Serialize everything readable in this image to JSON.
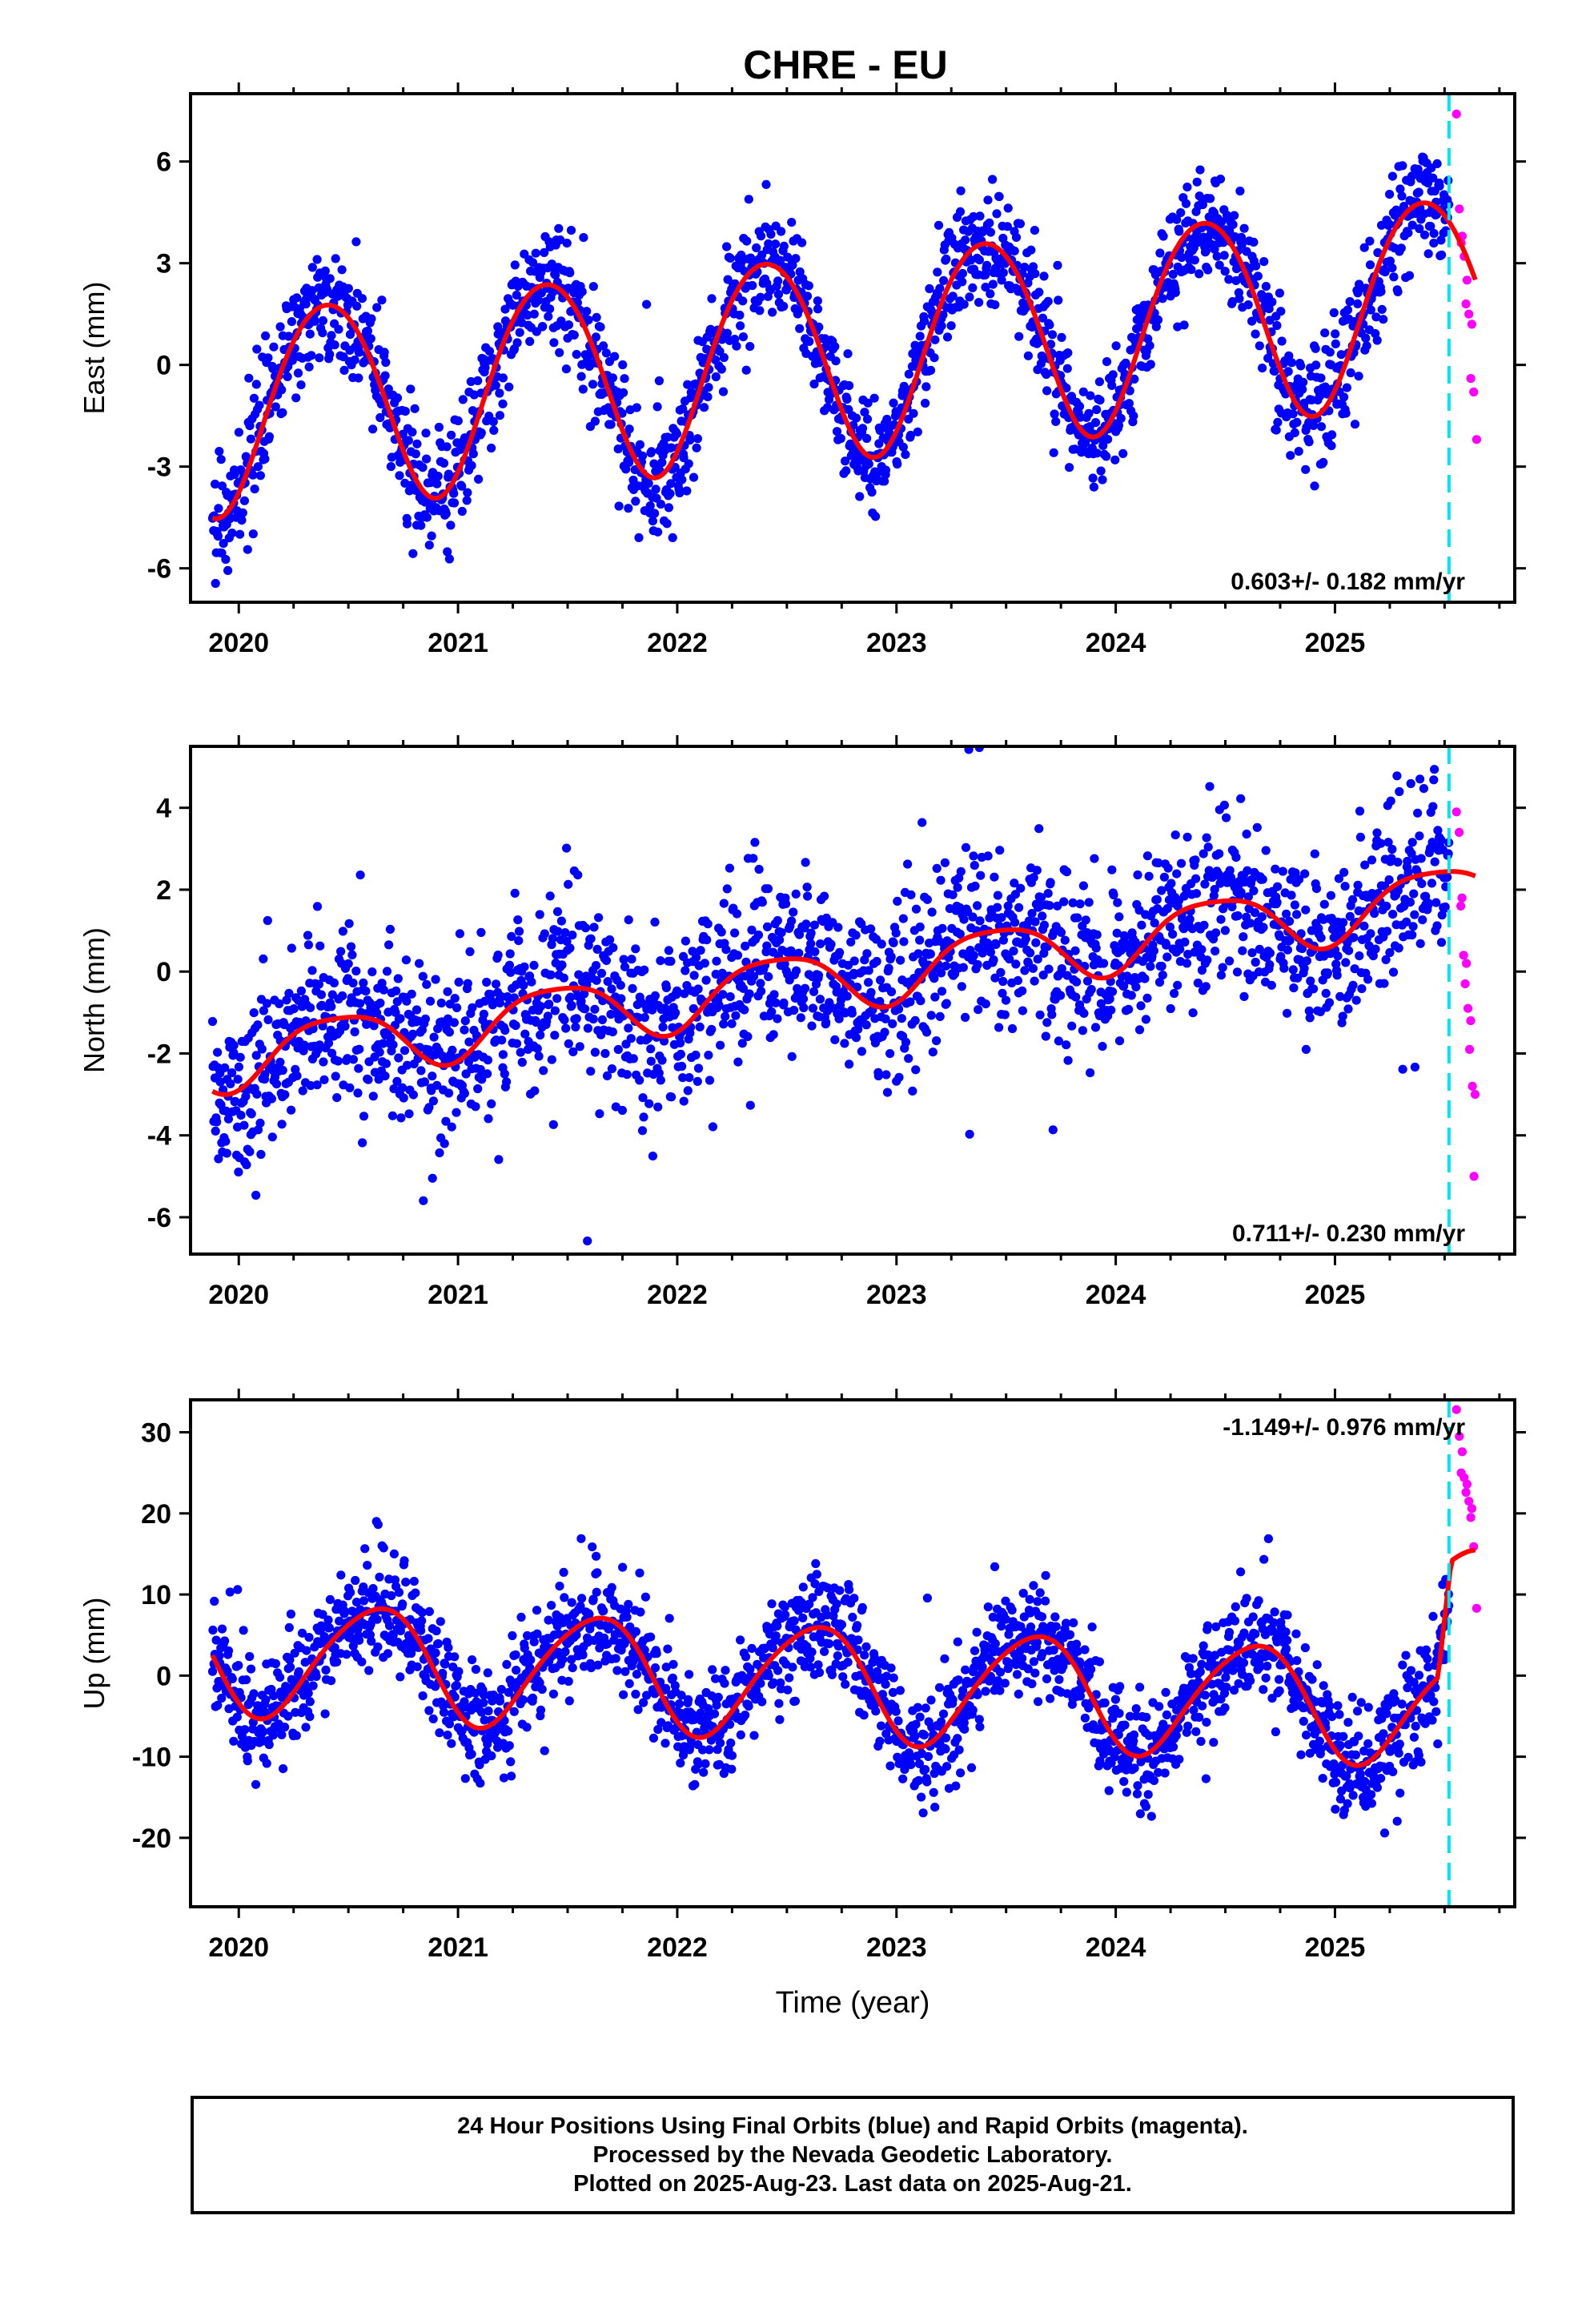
{
  "page": {
    "title": "CHRE - EU"
  },
  "chart_data": [
    {
      "type": "scatter",
      "name": "east",
      "ylabel": "East (mm)",
      "xlabel": "",
      "xlim": [
        2019.78,
        2025.82
      ],
      "ylim": [
        -7.0,
        8.0
      ],
      "xticks": [
        2020,
        2021,
        2022,
        2023,
        2024,
        2025
      ],
      "yticks": [
        -6,
        -3,
        0,
        3,
        6
      ],
      "rate_label": "0.603+/- 0.182 mm/yr",
      "rate_position": "bottom-right",
      "rapid_start": 2025.52,
      "model": {
        "offset": -1.35,
        "trend": 0.603,
        "annual_amp": 3.0,
        "annual_peak": 0.4,
        "semiannual_amp": 0.2,
        "semiannual_peak": 0.15,
        "noise": 0.85
      },
      "series": [
        {
          "name": "Final Orbits",
          "color": "#0000ff",
          "x_range": [
            2019.88,
            2025.52
          ],
          "n": 2000
        },
        {
          "name": "Rapid Orbits",
          "color": "#ff00ff",
          "x_range": [
            2025.56,
            2025.64
          ],
          "values": [
            7.4,
            4.6,
            3.8,
            3.6,
            3.2,
            2.5,
            1.8,
            1.5,
            1.2,
            -0.4,
            -0.8,
            -2.2
          ]
        }
      ],
      "fit_color": "#ff0000",
      "rapid_line_color": "#00e5ee"
    },
    {
      "type": "scatter",
      "name": "north",
      "ylabel": "North (mm)",
      "xlabel": "",
      "xlim": [
        2019.78,
        2025.82
      ],
      "ylim": [
        -6.9,
        5.5
      ],
      "xticks": [
        2020,
        2021,
        2022,
        2023,
        2024,
        2025
      ],
      "yticks": [
        -6,
        -4,
        -2,
        0,
        2,
        4
      ],
      "rate_label": "0.711+/- 0.230 mm/yr",
      "rate_position": "bottom-right",
      "rapid_start": 2025.52,
      "model": {
        "offset": -2.15,
        "trend": 0.711,
        "annual_amp": 0.75,
        "annual_peak": 0.45,
        "semiannual_amp": 0.15,
        "semiannual_peak": 0.2,
        "noise": 1.05
      },
      "series": [
        {
          "name": "Final Orbits",
          "color": "#0000ff",
          "x_range": [
            2019.88,
            2025.52
          ],
          "n": 2000
        },
        {
          "name": "Rapid Orbits",
          "color": "#ff00ff",
          "x_range": [
            2025.56,
            2025.64
          ],
          "values": [
            3.9,
            3.4,
            1.8,
            1.6,
            0.4,
            0.2,
            -0.3,
            -0.9,
            -1.2,
            -1.9,
            -2.8,
            -3.0,
            -5.0
          ]
        }
      ],
      "fit_color": "#ff0000",
      "rapid_line_color": "#00e5ee"
    },
    {
      "type": "scatter",
      "name": "up",
      "ylabel": "Up (mm)",
      "xlabel": "Time (year)",
      "xlim": [
        2019.78,
        2025.82
      ],
      "ylim": [
        -28.5,
        34.0
      ],
      "xticks": [
        2020,
        2021,
        2022,
        2023,
        2024,
        2025
      ],
      "yticks": [
        -20,
        -10,
        0,
        10,
        20,
        30
      ],
      "rate_label": "-1.149+/- 0.976 mm/yr",
      "rate_position": "top-right",
      "rapid_start": 2025.52,
      "model": {
        "offset": 2.5,
        "trend": -1.149,
        "annual_amp": 7.0,
        "annual_peak": 0.62,
        "semiannual_amp": 0.8,
        "semiannual_peak": 0.3,
        "noise": 3.4,
        "end_jump": 13.0,
        "end_jump_start": 2025.47
      },
      "series": [
        {
          "name": "Final Orbits",
          "color": "#0000ff",
          "x_range": [
            2019.88,
            2025.52
          ],
          "n": 2000
        },
        {
          "name": "Rapid Orbits",
          "color": "#ff00ff",
          "x_range": [
            2025.56,
            2025.64
          ],
          "values": [
            32.8,
            29.5,
            27.6,
            25.0,
            24.4,
            23.6,
            22.6,
            21.5,
            20.6,
            19.5,
            15.9,
            8.3
          ]
        }
      ],
      "fit_color": "#ff0000",
      "rapid_line_color": "#00e5ee"
    }
  ],
  "footer": {
    "line1": "24 Hour Positions Using Final Orbits (blue) and Rapid Orbits (magenta).",
    "line2": "Processed by the Nevada Geodetic Laboratory.",
    "line3": "Plotted on 2025-Aug-23. Last data on 2025-Aug-21."
  }
}
